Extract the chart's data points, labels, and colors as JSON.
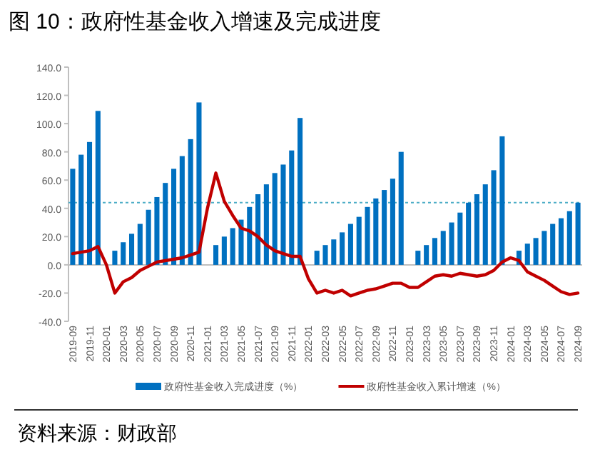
{
  "chart_data": {
    "type": "bar",
    "title": "图 10：政府性基金收入增速及完成进度",
    "categories": [
      "2019-09",
      null,
      "2019-11",
      null,
      "2020-01",
      null,
      "2020-03",
      null,
      "2020-05",
      null,
      "2020-07",
      null,
      "2020-09",
      null,
      "2020-11",
      null,
      "2021-01",
      null,
      "2021-03",
      null,
      "2021-05",
      null,
      "2021-07",
      null,
      "2021-09",
      null,
      "2021-11",
      null,
      "2022-01",
      null,
      "2022-03",
      null,
      "2022-05",
      null,
      "2022-07",
      null,
      "2022-09",
      null,
      "2022-11",
      null,
      "2023-01",
      null,
      "2023-03",
      null,
      "2023-05",
      null,
      "2023-07",
      null,
      "2023-09",
      null,
      "2023-11",
      null,
      "2024-01",
      null,
      "2024-03",
      null,
      "2024-05",
      null,
      "2024-07",
      null,
      "2024-09"
    ],
    "series": [
      {
        "name": "政府性基金收入完成进度（%）",
        "color": "#0070c0",
        "values": [
          68,
          78,
          87,
          109,
          null,
          10,
          16,
          22,
          29,
          39,
          48,
          58,
          68,
          77,
          89,
          115,
          null,
          14,
          20,
          26,
          32,
          41,
          50,
          57,
          65,
          71,
          81,
          104,
          null,
          10,
          14,
          18,
          23,
          29,
          34,
          41,
          47,
          53,
          61,
          80,
          null,
          10,
          14,
          19,
          24,
          30,
          37,
          44,
          50,
          57,
          67,
          91,
          null,
          10,
          15,
          19,
          24,
          29,
          33,
          38,
          44
        ]
      },
      {
        "name": "政府性基金收入累计增速（%）",
        "type": "line",
        "color": "#c00000",
        "values": [
          8,
          9,
          10,
          13,
          0,
          -20,
          -12,
          -9,
          -4,
          -1,
          2,
          3,
          4,
          5,
          7,
          9,
          40,
          65,
          45,
          35,
          26,
          24,
          20,
          14,
          10,
          8,
          6,
          6,
          -10,
          -20,
          -18,
          -20,
          -18,
          -22,
          -20,
          -18,
          -17,
          -15,
          -13,
          -13,
          -16,
          -16,
          -12,
          -8,
          -7,
          -8,
          -6,
          -7,
          -8,
          -7,
          -4,
          2,
          5,
          3,
          -5,
          -8,
          -11,
          -15,
          -19,
          -21,
          -20
        ]
      }
    ],
    "ylim": [
      -40,
      140
    ],
    "yticks": [
      {
        "value": -40,
        "label": "-40.0"
      },
      {
        "value": -20,
        "label": "-20.0"
      },
      {
        "value": 0,
        "label": "0.0"
      },
      {
        "value": 20,
        "label": "20.0"
      },
      {
        "value": 40,
        "label": "40.0"
      },
      {
        "value": 60,
        "label": "60.0"
      },
      {
        "value": 80,
        "label": "80.0"
      },
      {
        "value": 100,
        "label": "100.0"
      },
      {
        "value": 120,
        "label": "120.0"
      },
      {
        "value": 140,
        "label": "140.0"
      }
    ],
    "ref_lines": [
      {
        "axis": "y",
        "value": 44,
        "color": "#4bacc6",
        "line_style": "dotted"
      }
    ],
    "legend": "bottom",
    "annotations": [
      "资料来源：财政部"
    ]
  }
}
